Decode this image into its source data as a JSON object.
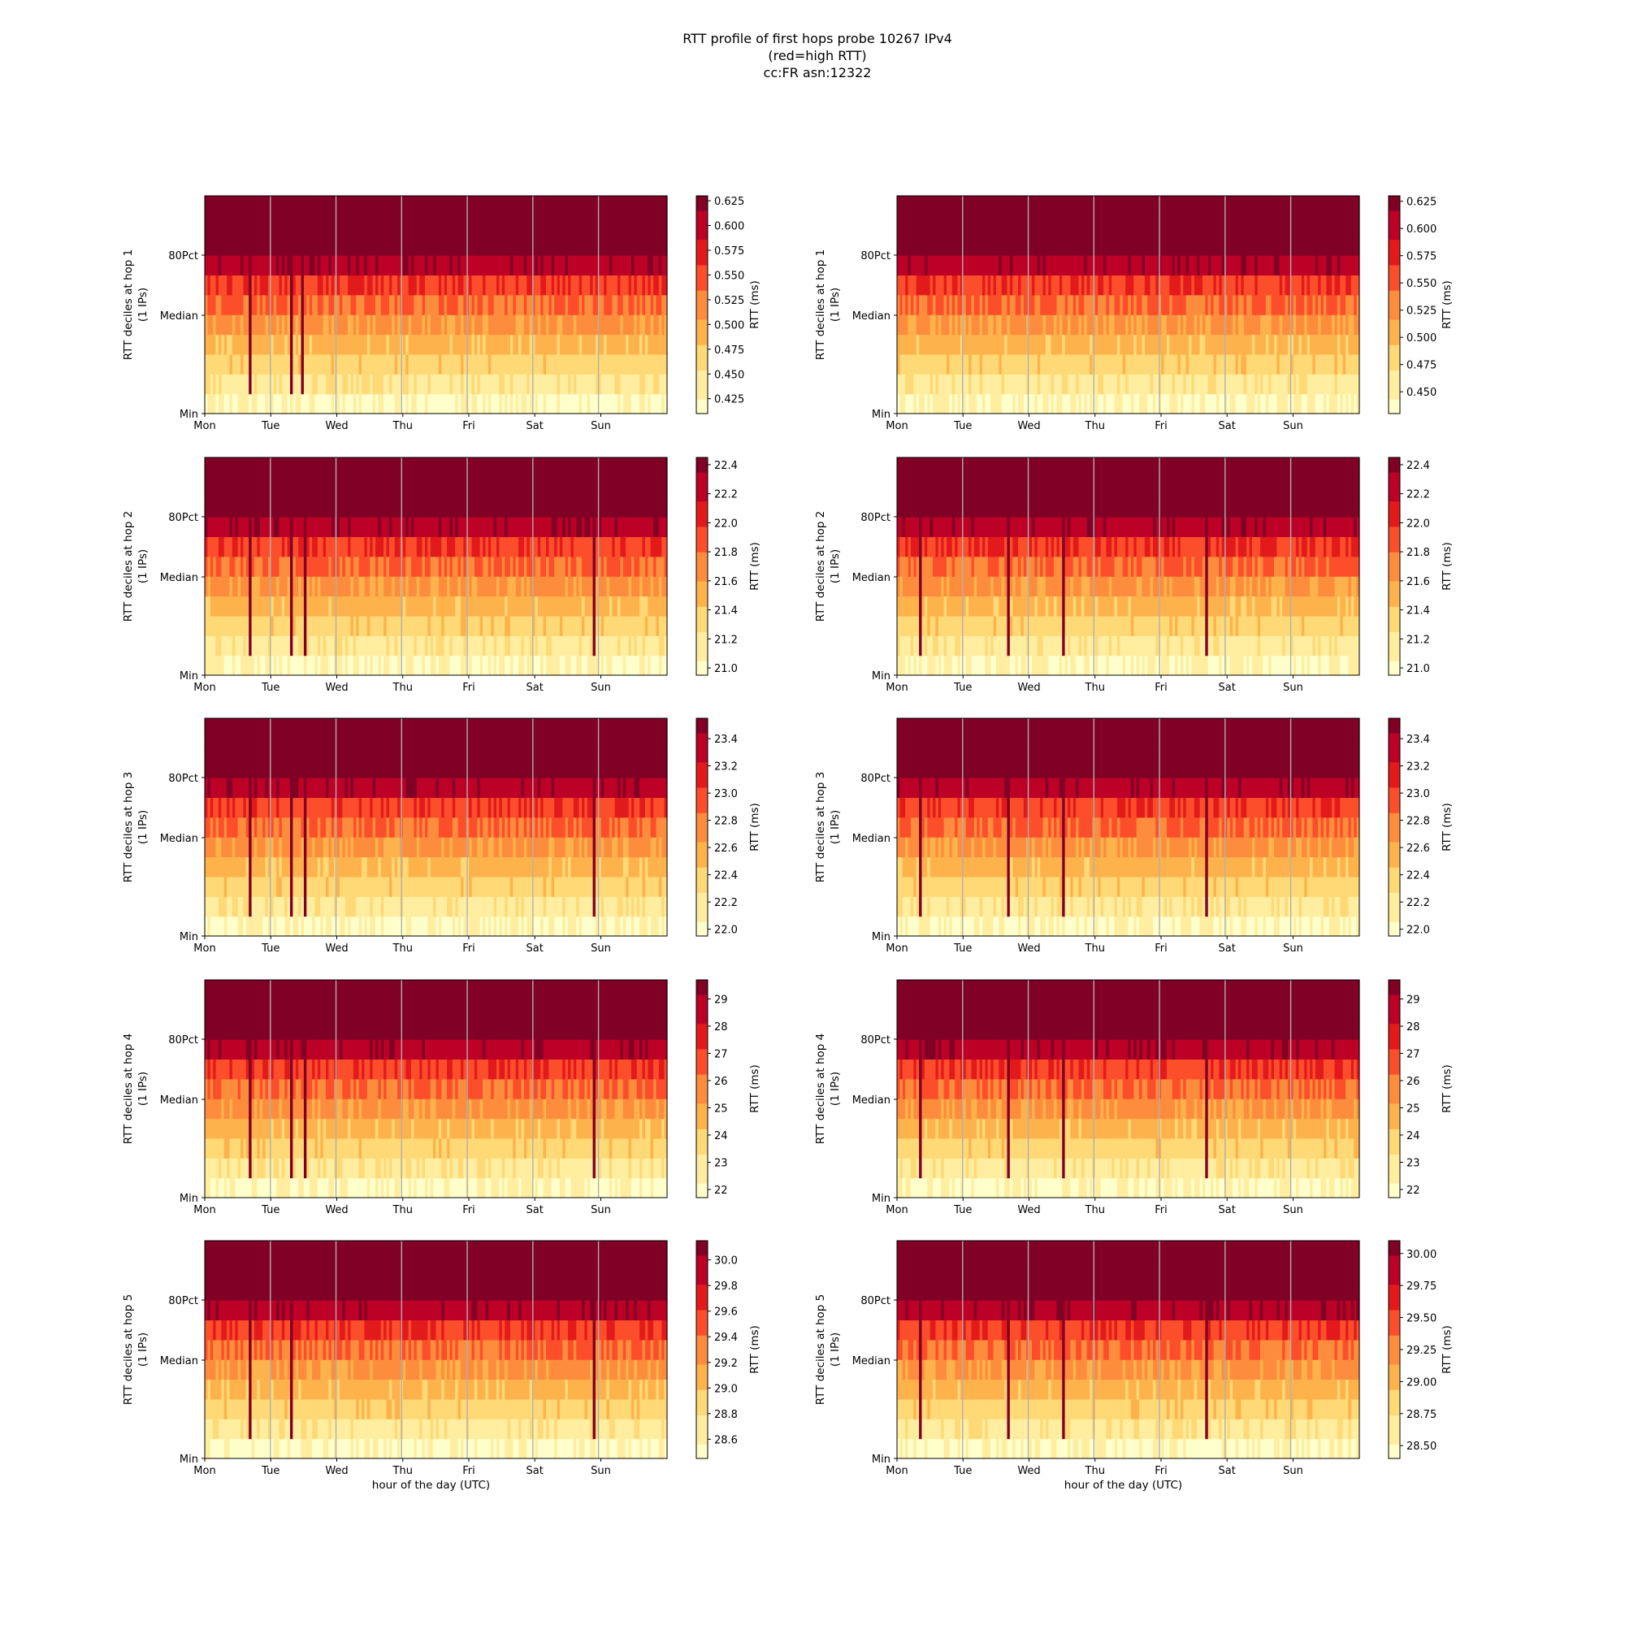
{
  "title_lines": [
    "RTT profile of first hops probe 10267 IPv4",
    "(red=high RTT)",
    "cc:FR asn:12322"
  ],
  "day_labels": [
    "Mon",
    "Tue",
    "Wed",
    "Thu",
    "Fri",
    "Sat",
    "Sun"
  ],
  "y_tick_labels": [
    "80Pct",
    "Median",
    "Min"
  ],
  "xlabel": "hour of the day (UTC)",
  "colorbar_label": "RTT (ms)",
  "colormap": [
    "#ffffcc",
    "#ffeda0",
    "#fed976",
    "#feb24c",
    "#fd8d3c",
    "#fc4e2a",
    "#e31a1c",
    "#bd0026",
    "#800026"
  ],
  "chart_data": [
    {
      "type": "heatmap",
      "row": 1,
      "col": 1,
      "hop": 1,
      "ylabel": "RTT deciles at hop 1",
      "ylabel2": "(1 IPs)",
      "cbar_ticks": [
        "0.625",
        "0.600",
        "0.575",
        "0.550",
        "0.525",
        "0.500",
        "0.475",
        "0.450",
        "0.425"
      ],
      "cbar_range": [
        0.41,
        0.63
      ],
      "dips": [
        0.1,
        0.19,
        0.21
      ]
    },
    {
      "type": "heatmap",
      "row": 1,
      "col": 2,
      "hop": 1,
      "ylabel": "RTT deciles at hop 1",
      "ylabel2": "(1 IPs)",
      "cbar_ticks": [
        "0.625",
        "0.600",
        "0.575",
        "0.550",
        "0.525",
        "0.500",
        "0.475",
        "0.450"
      ],
      "cbar_range": [
        0.43,
        0.63
      ],
      "dips": []
    },
    {
      "type": "heatmap",
      "row": 2,
      "col": 1,
      "hop": 2,
      "ylabel": "RTT deciles at hop 2",
      "ylabel2": "(1 IPs)",
      "cbar_ticks": [
        "22.4",
        "22.2",
        "22.0",
        "21.8",
        "21.6",
        "21.4",
        "21.2",
        "21.0"
      ],
      "cbar_range": [
        20.95,
        22.45
      ],
      "dips": [
        0.1,
        0.19,
        0.22,
        0.84
      ]
    },
    {
      "type": "heatmap",
      "row": 2,
      "col": 2,
      "hop": 2,
      "ylabel": "RTT deciles at hop 2",
      "ylabel2": "(1 IPs)",
      "cbar_ticks": [
        "22.4",
        "22.2",
        "22.0",
        "21.8",
        "21.6",
        "21.4",
        "21.2",
        "21.0"
      ],
      "cbar_range": [
        20.95,
        22.45
      ],
      "dips": [
        0.05,
        0.24,
        0.36,
        0.67
      ]
    },
    {
      "type": "heatmap",
      "row": 3,
      "col": 1,
      "hop": 3,
      "ylabel": "RTT deciles at hop 3",
      "ylabel2": "(1 IPs)",
      "cbar_ticks": [
        "23.4",
        "23.2",
        "23.0",
        "22.8",
        "22.6",
        "22.4",
        "22.2",
        "22.0"
      ],
      "cbar_range": [
        21.95,
        23.55
      ],
      "dips": [
        0.1,
        0.19,
        0.22,
        0.84
      ]
    },
    {
      "type": "heatmap",
      "row": 3,
      "col": 2,
      "hop": 3,
      "ylabel": "RTT deciles at hop 3",
      "ylabel2": "(1 IPs)",
      "cbar_ticks": [
        "23.4",
        "23.2",
        "23.0",
        "22.8",
        "22.6",
        "22.4",
        "22.2",
        "22.0"
      ],
      "cbar_range": [
        21.95,
        23.55
      ],
      "dips": [
        0.05,
        0.24,
        0.36,
        0.67
      ]
    },
    {
      "type": "heatmap",
      "row": 4,
      "col": 1,
      "hop": 4,
      "ylabel": "RTT deciles at hop 4",
      "ylabel2": "(1 IPs)",
      "cbar_ticks": [
        "29",
        "28",
        "27",
        "26",
        "25",
        "24",
        "23",
        "22"
      ],
      "cbar_range": [
        21.7,
        29.7
      ],
      "dips": [
        0.1,
        0.19,
        0.22,
        0.84
      ]
    },
    {
      "type": "heatmap",
      "row": 4,
      "col": 2,
      "hop": 4,
      "ylabel": "RTT deciles at hop 4",
      "ylabel2": "(1 IPs)",
      "cbar_ticks": [
        "29",
        "28",
        "27",
        "26",
        "25",
        "24",
        "23",
        "22"
      ],
      "cbar_range": [
        21.7,
        29.7
      ],
      "dips": [
        0.05,
        0.24,
        0.36,
        0.67
      ]
    },
    {
      "type": "heatmap",
      "row": 5,
      "col": 1,
      "hop": 5,
      "ylabel": "RTT deciles at hop 5",
      "ylabel2": "(1 IPs)",
      "cbar_ticks": [
        "30.0",
        "29.8",
        "29.6",
        "29.4",
        "29.2",
        "29.0",
        "28.8",
        "28.6"
      ],
      "cbar_range": [
        28.45,
        30.15
      ],
      "dips": [
        0.1,
        0.19,
        0.84
      ]
    },
    {
      "type": "heatmap",
      "row": 5,
      "col": 2,
      "hop": 5,
      "ylabel": "RTT deciles at hop 5",
      "ylabel2": "(1 IPs)",
      "cbar_ticks": [
        "30.00",
        "29.75",
        "29.50",
        "29.25",
        "29.00",
        "28.75",
        "28.50"
      ],
      "cbar_range": [
        28.4,
        30.1
      ],
      "dips": [
        0.05,
        0.24,
        0.36,
        0.67
      ]
    }
  ]
}
